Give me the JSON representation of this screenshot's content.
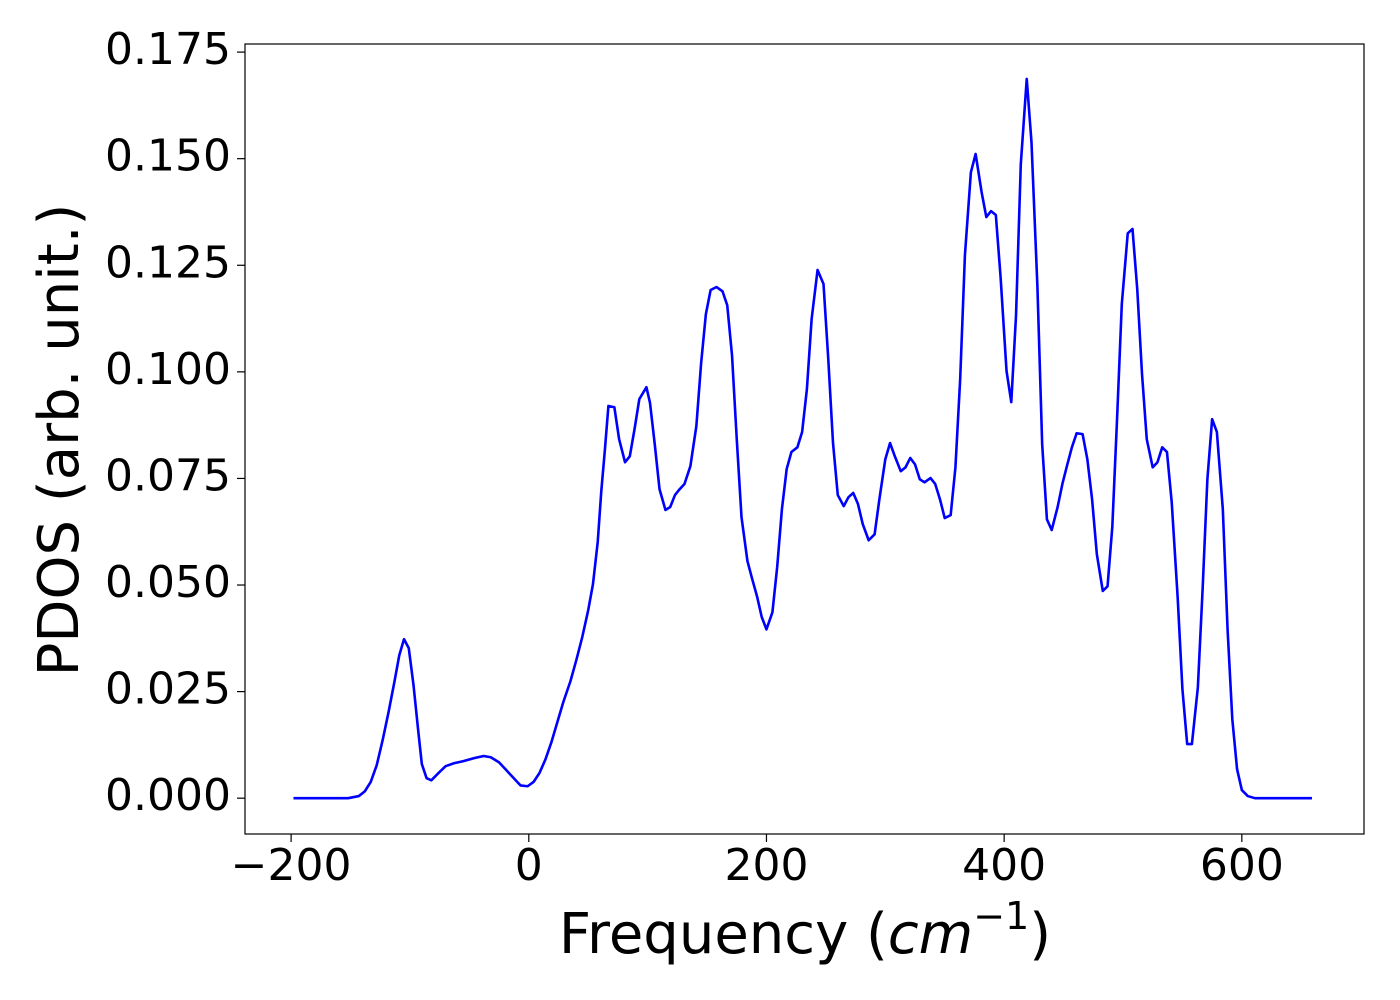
{
  "chart_data": {
    "type": "line",
    "xlabel": {
      "text": "Frequency (",
      "unit": "cm",
      "exponent": "−1",
      "close": ")"
    },
    "ylabel": "PDOS (arb. unit.)",
    "x": [
      -198,
      -152,
      -143,
      -138,
      -133,
      -128,
      -123,
      -118,
      -113,
      -109,
      -105,
      -101,
      -97,
      -93,
      -90,
      -86,
      -82,
      -76,
      -70,
      -63,
      -55,
      -46,
      -38,
      -32,
      -25,
      -19,
      -12,
      -7,
      -1,
      4,
      9,
      14,
      19,
      24,
      29,
      35,
      40,
      45,
      50,
      54,
      58,
      61,
      64,
      67,
      72,
      76,
      81,
      85,
      89,
      93,
      99,
      102,
      106,
      110,
      115,
      119,
      123,
      127,
      131,
      136,
      141,
      145,
      149,
      153,
      158,
      163,
      167,
      171,
      175,
      179,
      184,
      188,
      192,
      196,
      200,
      205,
      209,
      213,
      217,
      221,
      226,
      230,
      234,
      238,
      243,
      248,
      252,
      256,
      260,
      265,
      269,
      273,
      277,
      281,
      286,
      291,
      295,
      300,
      304,
      308,
      313,
      317,
      321,
      325,
      329,
      333,
      338,
      342,
      346,
      350,
      355,
      359,
      363,
      367,
      372,
      376,
      381,
      385,
      389,
      393,
      397,
      402,
      406,
      410,
      414,
      419,
      423,
      428,
      432,
      436,
      440,
      445,
      449,
      453,
      457,
      461,
      466,
      470,
      474,
      478,
      483,
      487,
      491,
      495,
      499,
      504,
      508,
      512,
      516,
      520,
      525,
      529,
      533,
      537,
      541,
      546,
      550,
      554,
      558,
      563,
      567,
      571,
      575,
      579,
      584,
      588,
      592,
      596,
      600,
      605,
      611,
      659
    ],
    "series": [
      {
        "color": "#0000ff",
        "values": [
          0,
          0,
          0.0005,
          0.0016,
          0.0038,
          0.0077,
          0.0136,
          0.0202,
          0.0274,
          0.0335,
          0.0373,
          0.0352,
          0.0265,
          0.0157,
          0.008,
          0.0047,
          0.0042,
          0.0059,
          0.0075,
          0.0082,
          0.0087,
          0.0094,
          0.0099,
          0.0096,
          0.0084,
          0.0066,
          0.0045,
          0.003,
          0.0028,
          0.0038,
          0.0059,
          0.0091,
          0.0131,
          0.0178,
          0.0225,
          0.0274,
          0.0324,
          0.0378,
          0.0441,
          0.0502,
          0.0601,
          0.072,
          0.0816,
          0.092,
          0.0917,
          0.0842,
          0.0788,
          0.0802,
          0.0866,
          0.0936,
          0.0964,
          0.0927,
          0.083,
          0.0725,
          0.0676,
          0.0683,
          0.0711,
          0.0725,
          0.0737,
          0.0779,
          0.0873,
          0.102,
          0.1135,
          0.1192,
          0.1199,
          0.1189,
          0.1156,
          0.1039,
          0.0842,
          0.0659,
          0.0556,
          0.0514,
          0.0474,
          0.0425,
          0.0396,
          0.0436,
          0.0542,
          0.0678,
          0.0772,
          0.0812,
          0.0823,
          0.0859,
          0.0959,
          0.1124,
          0.1239,
          0.1206,
          0.103,
          0.0833,
          0.0711,
          0.0685,
          0.0706,
          0.0716,
          0.069,
          0.0643,
          0.0605,
          0.0619,
          0.0701,
          0.0795,
          0.0833,
          0.0802,
          0.0767,
          0.0776,
          0.0798,
          0.0783,
          0.0748,
          0.0741,
          0.0751,
          0.0737,
          0.0701,
          0.0657,
          0.0664,
          0.0776,
          0.0983,
          0.1274,
          0.1468,
          0.1511,
          0.1422,
          0.1363,
          0.1377,
          0.1368,
          0.1222,
          0.1002,
          0.0929,
          0.1133,
          0.1487,
          0.1687,
          0.1539,
          0.1199,
          0.083,
          0.0654,
          0.0629,
          0.0683,
          0.0737,
          0.0781,
          0.0823,
          0.0856,
          0.0854,
          0.0795,
          0.0701,
          0.0572,
          0.0486,
          0.0497,
          0.0636,
          0.0889,
          0.1159,
          0.1325,
          0.1335,
          0.1194,
          0.0995,
          0.0842,
          0.0776,
          0.0788,
          0.0823,
          0.0812,
          0.0694,
          0.0471,
          0.0256,
          0.0127,
          0.0127,
          0.026,
          0.049,
          0.0748,
          0.0889,
          0.0859,
          0.0678,
          0.0396,
          0.0185,
          0.0068,
          0.0019,
          0.0005,
          0,
          0
        ]
      }
    ],
    "xlim": [
      -238.8,
      702.8
    ],
    "ylim": [
      -0.0084,
      0.1769
    ],
    "xticks": [
      {
        "value": -200,
        "label": "−200"
      },
      0,
      200,
      400,
      600
    ],
    "yticks": [
      {
        "value": 0,
        "label": "0.000"
      },
      {
        "value": 0.025,
        "label": "0.025"
      },
      {
        "value": 0.05,
        "label": "0.050"
      },
      {
        "value": 0.075,
        "label": "0.075"
      },
      {
        "value": 0.1,
        "label": "0.100"
      },
      {
        "value": 0.125,
        "label": "0.125"
      },
      {
        "value": 0.15,
        "label": "0.150"
      },
      {
        "value": 0.175,
        "label": "0.175"
      }
    ]
  }
}
